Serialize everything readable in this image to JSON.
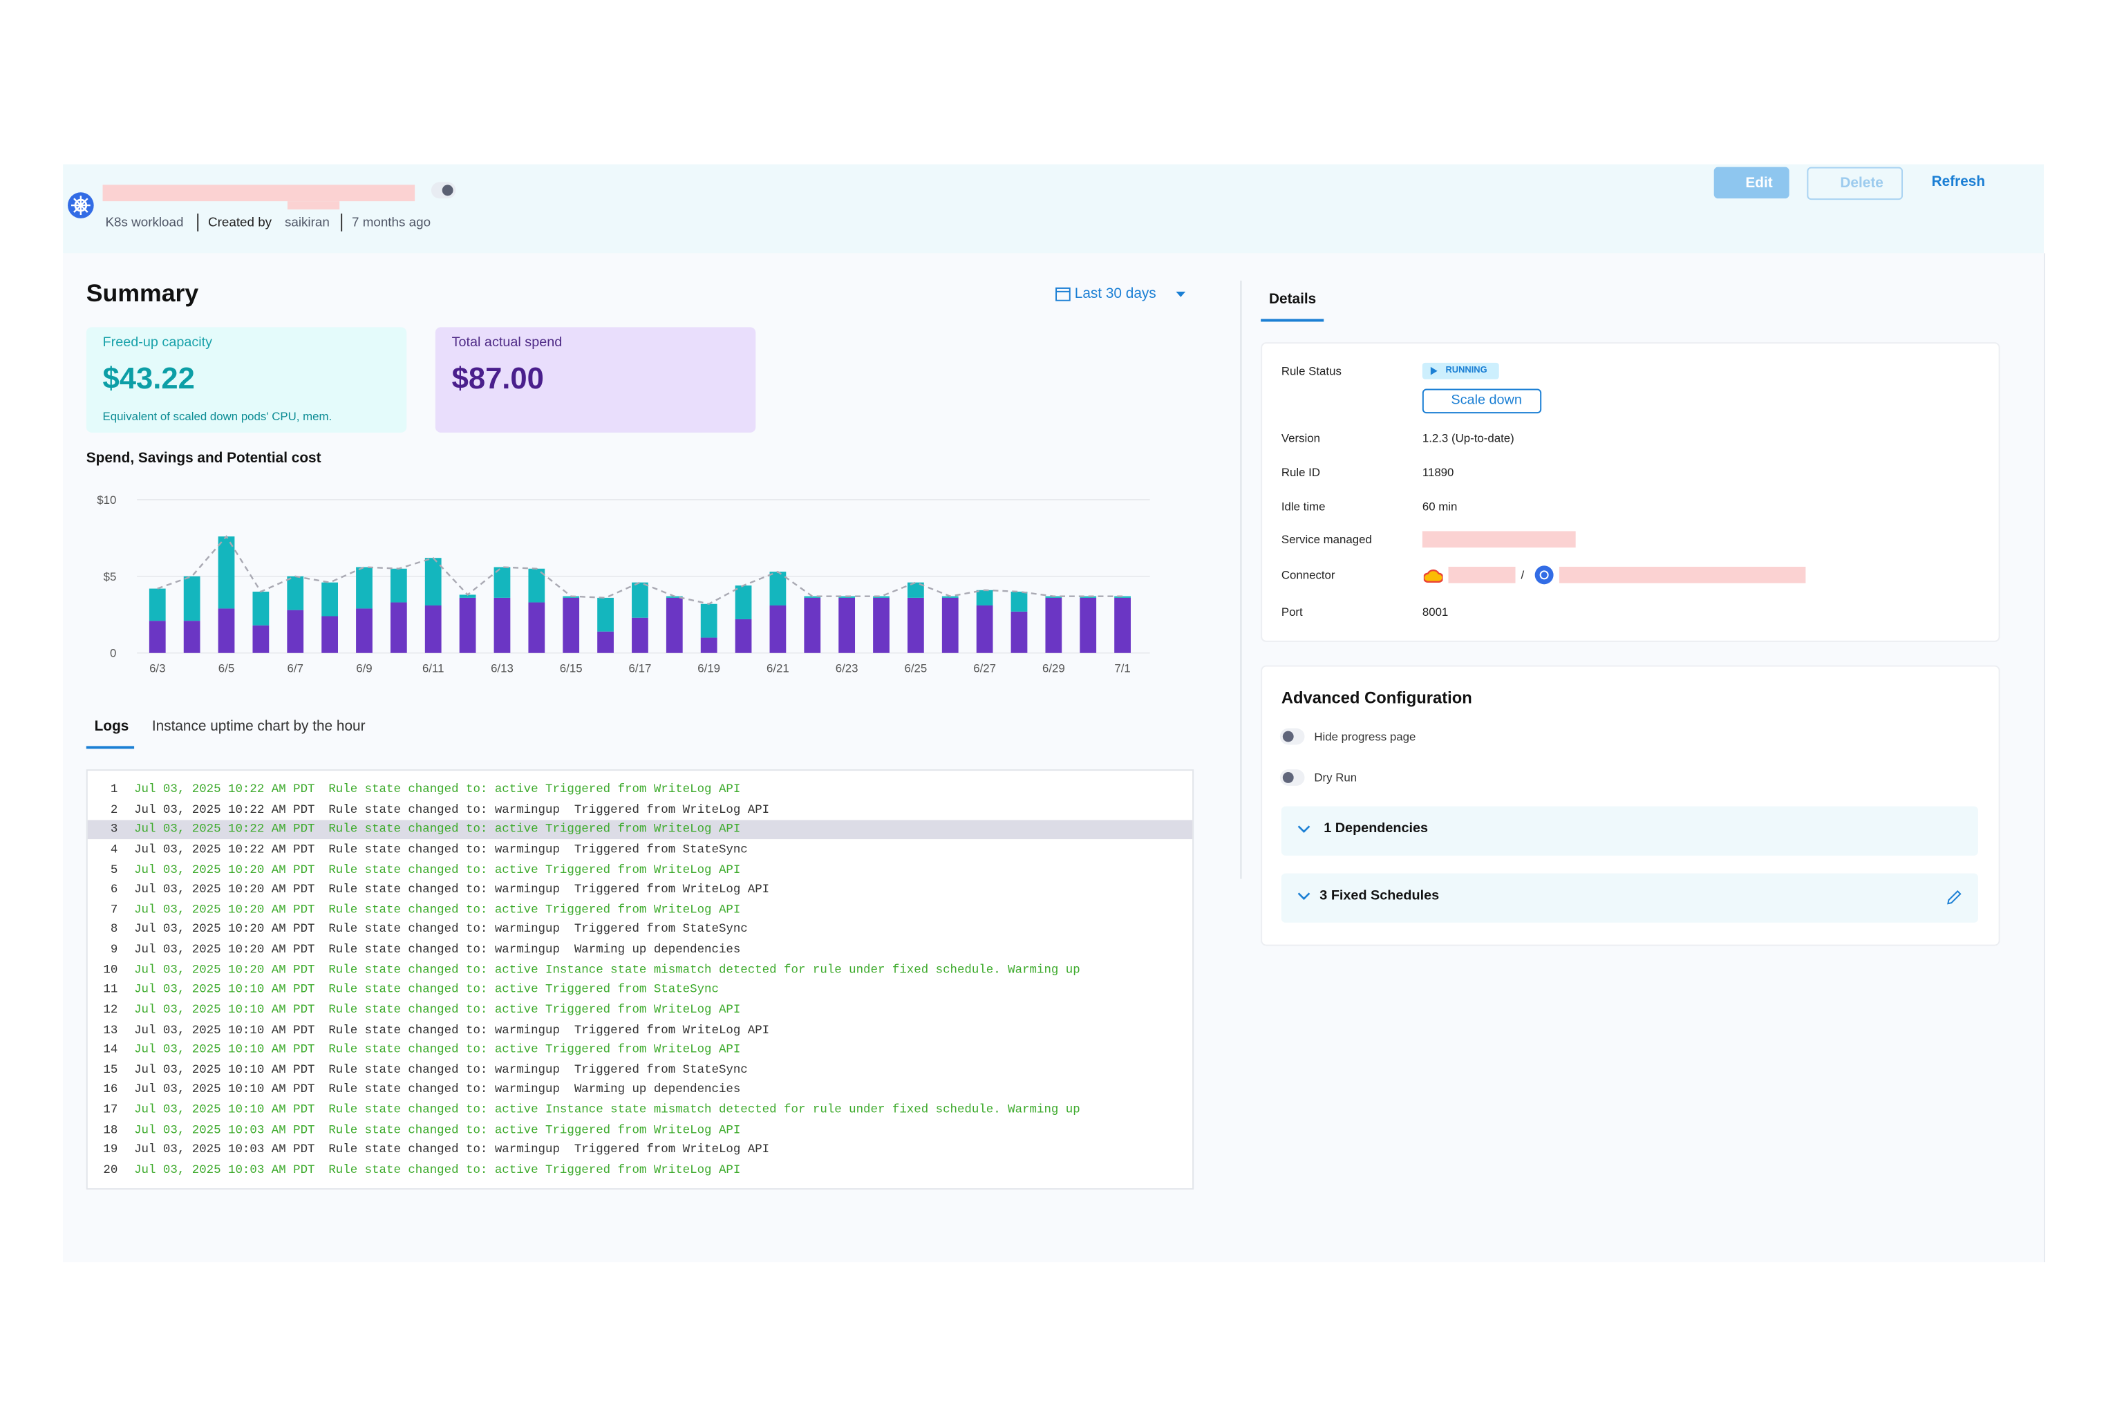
{
  "header": {
    "type_label": "K8s workload",
    "created_by_label": "Created by",
    "creator": "saikiran",
    "age": "7 months ago",
    "buttons": {
      "edit": "Edit",
      "delete": "Delete",
      "refresh": "Refresh"
    }
  },
  "summary": {
    "title": "Summary",
    "date_range": "Last 30 days",
    "cards": [
      {
        "title": "Freed-up capacity",
        "value": "$43.22",
        "note": "Equivalent of scaled down pods' CPU, mem."
      },
      {
        "title": "Total actual spend",
        "value": "$87.00"
      }
    ]
  },
  "chart_data": {
    "type": "bar",
    "stacked": true,
    "title": "Spend, Savings and Potential cost",
    "categories": [
      "6/3",
      null,
      "6/5",
      null,
      "6/7",
      null,
      "6/9",
      null,
      "6/11",
      null,
      "6/13",
      null,
      "6/15",
      null,
      "6/17",
      null,
      "6/19",
      null,
      "6/21",
      null,
      "6/23",
      null,
      "6/25",
      null,
      "6/27",
      null,
      "6/29",
      null,
      "7/1"
    ],
    "series": [
      {
        "color": "#6b36c4",
        "values": [
          2.1,
          2.1,
          2.9,
          1.8,
          2.8,
          2.4,
          2.9,
          3.3,
          3.1,
          3.6,
          3.6,
          3.3,
          3.6,
          1.4,
          2.3,
          3.6,
          1.0,
          2.2,
          3.1,
          3.6,
          3.6,
          3.6,
          3.6,
          3.6,
          3.1,
          2.7,
          3.6,
          3.6,
          3.6
        ]
      },
      {
        "color": "#14b6be",
        "values": [
          2.1,
          2.9,
          4.7,
          2.2,
          2.2,
          2.2,
          2.7,
          2.2,
          3.1,
          0.2,
          2.0,
          2.2,
          0.1,
          2.2,
          2.3,
          0.1,
          2.2,
          2.2,
          2.2,
          0.1,
          0.1,
          0.1,
          1.0,
          0.1,
          1.0,
          1.3,
          0.1,
          0.1,
          0.1
        ]
      },
      {
        "type": "line",
        "dashed": true,
        "color": "#a9a9b3",
        "values": [
          4.2,
          5.0,
          7.6,
          4.0,
          5.0,
          4.6,
          5.6,
          5.5,
          6.2,
          3.8,
          5.6,
          5.5,
          3.7,
          3.6,
          4.6,
          3.7,
          3.2,
          4.4,
          5.3,
          3.7,
          3.7,
          3.7,
          4.6,
          3.7,
          4.1,
          4.0,
          3.7,
          3.7,
          3.7
        ]
      }
    ],
    "ylim": [
      0,
      10
    ],
    "yticks": [
      0,
      {
        "value": 5,
        "label": "$5"
      },
      {
        "value": 10,
        "label": "$10"
      }
    ],
    "grid": true
  },
  "tabs": [
    "Logs",
    "Instance uptime chart by the hour"
  ],
  "logs": {
    "highlighted": 3,
    "lines": [
      {
        "number": 1,
        "time": "Jul 03, 2025 10:22 AM PDT",
        "message": "Rule state changed to: active Triggered from WriteLog API",
        "color": "#3daa2c"
      },
      {
        "number": 2,
        "time": "Jul 03, 2025 10:22 AM PDT",
        "message": "Rule state changed to: warmingup  Triggered from WriteLog API",
        "color": "#333333"
      },
      {
        "number": 3,
        "time": "Jul 03, 2025 10:22 AM PDT",
        "message": "Rule state changed to: active Triggered from WriteLog API",
        "color": "#3daa2c"
      },
      {
        "number": 4,
        "time": "Jul 03, 2025 10:22 AM PDT",
        "message": "Rule state changed to: warmingup  Triggered from StateSync",
        "color": "#333333"
      },
      {
        "number": 5,
        "time": "Jul 03, 2025 10:20 AM PDT",
        "message": "Rule state changed to: active Triggered from WriteLog API",
        "color": "#3daa2c"
      },
      {
        "number": 6,
        "time": "Jul 03, 2025 10:20 AM PDT",
        "message": "Rule state changed to: warmingup  Triggered from WriteLog API",
        "color": "#333333"
      },
      {
        "number": 7,
        "time": "Jul 03, 2025 10:20 AM PDT",
        "message": "Rule state changed to: active Triggered from WriteLog API",
        "color": "#3daa2c"
      },
      {
        "number": 8,
        "time": "Jul 03, 2025 10:20 AM PDT",
        "message": "Rule state changed to: warmingup  Triggered from StateSync",
        "color": "#333333"
      },
      {
        "number": 9,
        "time": "Jul 03, 2025 10:20 AM PDT",
        "message": "Rule state changed to: warmingup  Warming up dependencies",
        "color": "#333333"
      },
      {
        "number": 10,
        "time": "Jul 03, 2025 10:20 AM PDT",
        "message": "Rule state changed to: active Instance state mismatch detected for rule under fixed schedule. Warming up",
        "color": "#3daa2c"
      },
      {
        "number": 11,
        "time": "Jul 03, 2025 10:10 AM PDT",
        "message": "Rule state changed to: active Triggered from StateSync",
        "color": "#3daa2c"
      },
      {
        "number": 12,
        "time": "Jul 03, 2025 10:10 AM PDT",
        "message": "Rule state changed to: active Triggered from WriteLog API",
        "color": "#3daa2c"
      },
      {
        "number": 13,
        "time": "Jul 03, 2025 10:10 AM PDT",
        "message": "Rule state changed to: warmingup  Triggered from WriteLog API",
        "color": "#333333"
      },
      {
        "number": 14,
        "time": "Jul 03, 2025 10:10 AM PDT",
        "message": "Rule state changed to: active Triggered from WriteLog API",
        "color": "#3daa2c"
      },
      {
        "number": 15,
        "time": "Jul 03, 2025 10:10 AM PDT",
        "message": "Rule state changed to: warmingup  Triggered from StateSync",
        "color": "#333333"
      },
      {
        "number": 16,
        "time": "Jul 03, 2025 10:10 AM PDT",
        "message": "Rule state changed to: warmingup  Warming up dependencies",
        "color": "#333333"
      },
      {
        "number": 17,
        "time": "Jul 03, 2025 10:10 AM PDT",
        "message": "Rule state changed to: active Instance state mismatch detected for rule under fixed schedule. Warming up",
        "color": "#3daa2c"
      },
      {
        "number": 18,
        "time": "Jul 03, 2025 10:03 AM PDT",
        "message": "Rule state changed to: active Triggered from WriteLog API",
        "color": "#3daa2c"
      },
      {
        "number": 19,
        "time": "Jul 03, 2025 10:03 AM PDT",
        "message": "Rule state changed to: warmingup  Triggered from WriteLog API",
        "color": "#333333"
      },
      {
        "number": 20,
        "time": "Jul 03, 2025 10:03 AM PDT",
        "message": "Rule state changed to: active Triggered from WriteLog API",
        "color": "#3daa2c"
      }
    ]
  },
  "details": {
    "tab": "Details",
    "status_label": "Rule Status",
    "status": "RUNNING",
    "scale_button": "Scale down",
    "rows": [
      {
        "label": "Version",
        "value": "1.2.3 (Up-to-date)"
      },
      {
        "label": "Rule ID",
        "value": "11890"
      },
      {
        "label": "Idle time",
        "value": "60 min"
      },
      {
        "label": "Service managed"
      },
      {
        "label": "Connector",
        "separator": "/"
      },
      {
        "label": "Port",
        "value": "8001"
      }
    ]
  },
  "advanced": {
    "title": "Advanced Configuration",
    "toggles": [
      "Hide progress page",
      "Dry Run"
    ],
    "sections": [
      "1 Dependencies",
      "3 Fixed Schedules"
    ]
  }
}
